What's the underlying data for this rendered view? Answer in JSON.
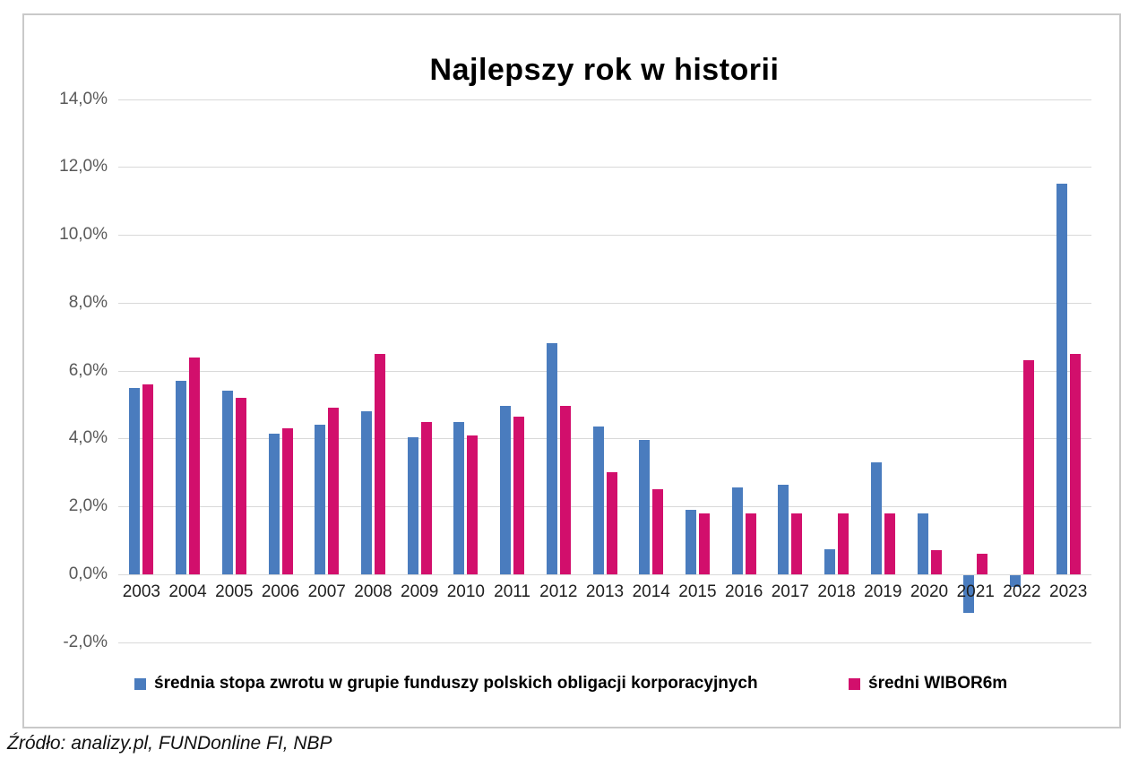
{
  "page": {
    "source_note": "Źródło: analizy.pl, FUNDonline FI, NBP"
  },
  "chart_data": {
    "type": "bar",
    "title": "Najlepszy rok w historii",
    "categories": [
      "2003",
      "2004",
      "2005",
      "2006",
      "2007",
      "2008",
      "2009",
      "2010",
      "2011",
      "2012",
      "2013",
      "2014",
      "2015",
      "2016",
      "2017",
      "2018",
      "2019",
      "2020",
      "2021",
      "2022",
      "2023"
    ],
    "series": [
      {
        "name": "średnia stopa zwrotu w grupie funduszy polskich obligacji korporacyjnych",
        "color": "#4a7cbe",
        "values": [
          5.5,
          5.7,
          5.4,
          4.15,
          4.4,
          4.8,
          4.05,
          4.5,
          4.95,
          6.8,
          4.35,
          3.95,
          1.9,
          2.55,
          2.65,
          0.75,
          3.3,
          1.8,
          -1.1,
          -0.35,
          11.5
        ]
      },
      {
        "name": "średni WIBOR6m",
        "color": "#d20f6c",
        "values": [
          5.6,
          6.4,
          5.2,
          4.3,
          4.9,
          6.5,
          4.5,
          4.1,
          4.65,
          4.95,
          3.0,
          2.5,
          1.8,
          1.8,
          1.8,
          1.8,
          1.8,
          0.7,
          0.6,
          6.3,
          6.5
        ]
      }
    ],
    "ylim": [
      -2,
      14
    ],
    "ytick_step": 2,
    "ytick_labels": [
      "14,0%",
      "12,0%",
      "10,0%",
      "8,0%",
      "6,0%",
      "4,0%",
      "2,0%",
      "0,0%",
      "-2,0%"
    ],
    "grid": true,
    "legend_position": "bottom-inside",
    "colors": {
      "grid": "#d9d9d9",
      "axis_text": "#595959",
      "border": "#c9c9c9"
    }
  }
}
